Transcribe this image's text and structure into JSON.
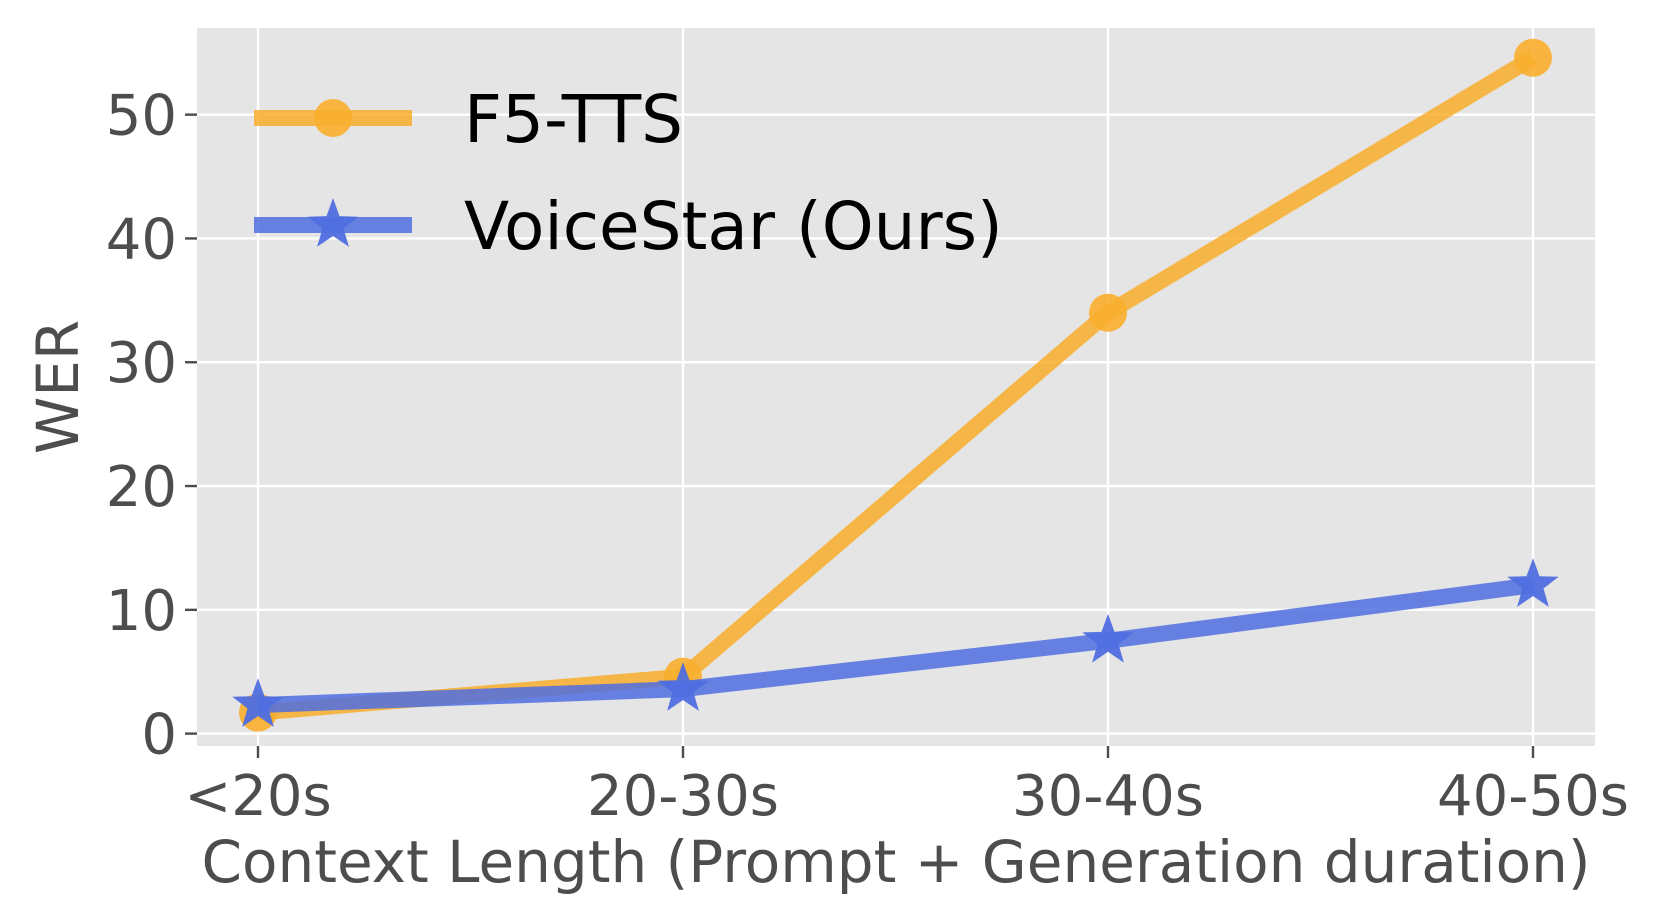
{
  "chart_data": {
    "type": "line",
    "title": "",
    "xlabel": "Context Length (Prompt + Generation duration)",
    "ylabel": "WER",
    "categories": [
      "<20s",
      "20-30s",
      "30-40s",
      "40-50s"
    ],
    "yticks": [
      0,
      10,
      20,
      30,
      40,
      50
    ],
    "ylim": [
      -1,
      57
    ],
    "grid": true,
    "legend_position": "top-left",
    "series": [
      {
        "name": "F5-TTS",
        "values": [
          1.7,
          4.6,
          34.0,
          54.6
        ],
        "color": "#f9ae2c",
        "marker": "circle"
      },
      {
        "name": "VoiceStar (Ours)",
        "values": [
          2.3,
          3.6,
          7.5,
          12.0
        ],
        "color": "#4f6ee0",
        "marker": "star"
      }
    ],
    "plot_background": "#e5e5e5",
    "grid_color": "#ffffff"
  }
}
